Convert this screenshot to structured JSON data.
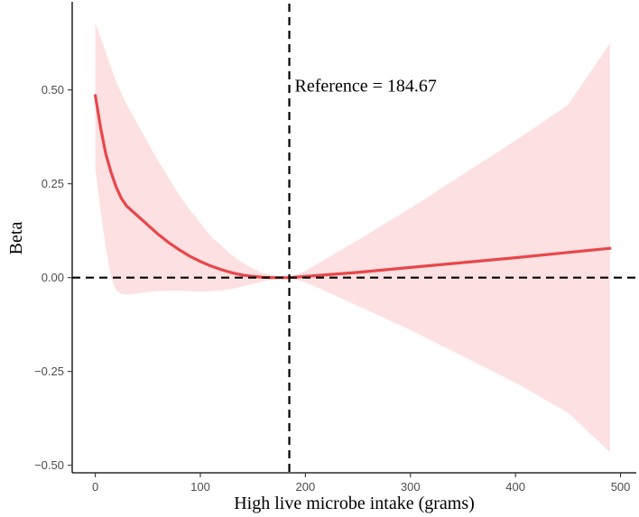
{
  "chart_data": {
    "type": "line",
    "title": "",
    "xlabel": "High live microbe intake (grams)",
    "ylabel": "Beta",
    "xlim": [
      -22,
      515
    ],
    "ylim": [
      -0.52,
      0.73
    ],
    "xticks": [
      0,
      100,
      200,
      300,
      400,
      500
    ],
    "xtick_labels": [
      "0",
      "100",
      "200",
      "300",
      "400",
      "500"
    ],
    "yticks": [
      -0.5,
      -0.25,
      0.0,
      0.25,
      0.5
    ],
    "ytick_labels": [
      "−0.50",
      "−0.25",
      "0.00",
      "0.25",
      "0.50"
    ],
    "reference_x": 184.67,
    "reference_y": 0,
    "annotation": "Reference = 184.67",
    "series": [
      {
        "name": "Beta estimate",
        "color": "#e8474a",
        "x": [
          0,
          5,
          10,
          15,
          20,
          25,
          30,
          40,
          50,
          60,
          70,
          80,
          90,
          100,
          110,
          120,
          130,
          140,
          150,
          160,
          170,
          184.67,
          200,
          250,
          300,
          350,
          400,
          450,
          490
        ],
        "y": [
          0.485,
          0.4,
          0.33,
          0.28,
          0.24,
          0.21,
          0.19,
          0.165,
          0.14,
          0.115,
          0.093,
          0.074,
          0.057,
          0.043,
          0.031,
          0.021,
          0.013,
          0.007,
          0.003,
          0.001,
          0.0,
          0.0,
          0.003,
          0.014,
          0.027,
          0.04,
          0.053,
          0.067,
          0.078
        ]
      }
    ],
    "confidence_band": {
      "color": "#fde0e1",
      "x": [
        0,
        5,
        10,
        15,
        20,
        25,
        30,
        40,
        50,
        60,
        70,
        80,
        90,
        100,
        110,
        120,
        130,
        140,
        150,
        160,
        170,
        184.67,
        200,
        250,
        300,
        350,
        400,
        450,
        490
      ],
      "upper": [
        0.68,
        0.64,
        0.6,
        0.56,
        0.52,
        0.49,
        0.46,
        0.41,
        0.36,
        0.31,
        0.265,
        0.22,
        0.18,
        0.145,
        0.11,
        0.085,
        0.06,
        0.04,
        0.024,
        0.012,
        0.005,
        0.0,
        0.018,
        0.1,
        0.185,
        0.275,
        0.365,
        0.46,
        0.625
      ],
      "lower": [
        0.29,
        0.18,
        0.08,
        0.0,
        -0.035,
        -0.043,
        -0.046,
        -0.042,
        -0.038,
        -0.036,
        -0.035,
        -0.035,
        -0.036,
        -0.037,
        -0.036,
        -0.034,
        -0.03,
        -0.024,
        -0.017,
        -0.01,
        -0.004,
        0.0,
        -0.012,
        -0.075,
        -0.14,
        -0.21,
        -0.28,
        -0.36,
        -0.465
      ]
    }
  }
}
